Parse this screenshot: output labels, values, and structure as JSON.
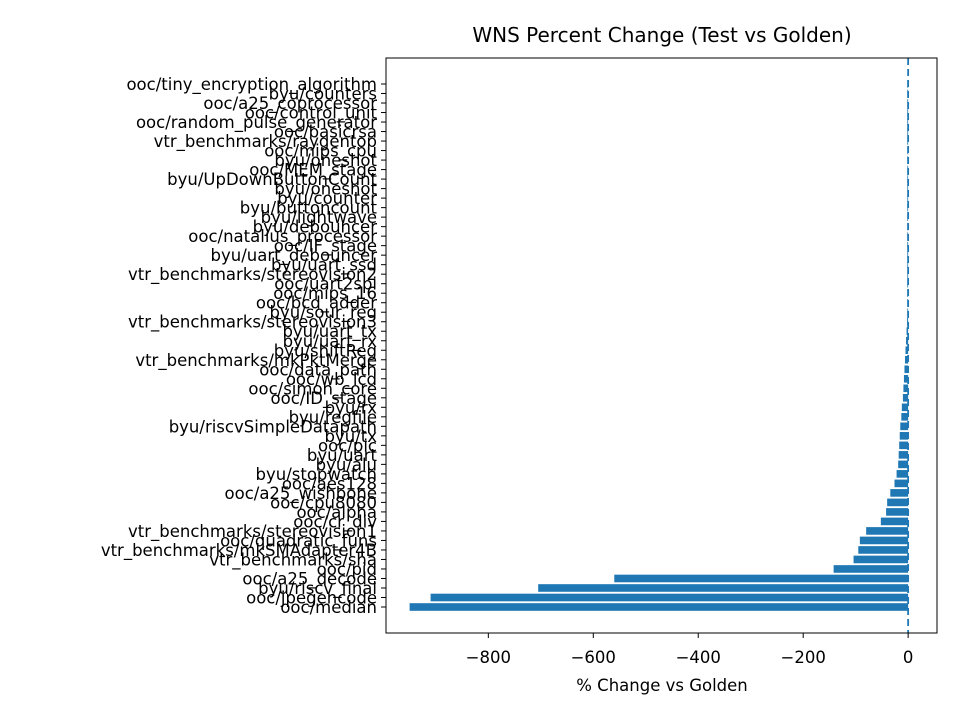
{
  "chart_data": {
    "type": "bar",
    "orientation": "horizontal",
    "title": "WNS Percent Change (Test vs Golden)",
    "xlabel": "% Change vs Golden",
    "ylabel": "",
    "xlim": [
      -995,
      55
    ],
    "xticks": [
      -800,
      -600,
      -400,
      -200,
      0
    ],
    "xtick_labels": [
      "−800",
      "−600",
      "−400",
      "−200",
      "0"
    ],
    "reference_line": {
      "x": 0,
      "style": "dashed",
      "color": "#1f77b4"
    },
    "bar_color": "#1f77b4",
    "grid": false,
    "categories": [
      "ooc/tiny_encryption_algorithm",
      "byu/counters",
      "ooc/a25_coprocessor",
      "ooc/control_unit",
      "ooc/random_pulse_generator",
      "ooc/basicrsa",
      "vtr_benchmarks/raygentop",
      "ooc/mips_cpu",
      "byu/oneshot",
      "ooc/MEM_stage",
      "byu/UpDownButtonCount",
      "byu/oneshot",
      "byu/counter",
      "byu/buttoncount",
      "byu/lightwave",
      "byu/debouncer",
      "ooc/natalius_processor",
      "ooc/IF_stage",
      "byu/uart_debouncer",
      "byu/uart_ssd",
      "vtr_benchmarks/stereovision2",
      "ooc/uart2spi",
      "ooc/mips_16",
      "ooc/bcd_adder",
      "byu/sour_reg",
      "vtr_benchmarks/stereovision3",
      "byu/uart_tx",
      "byu/uart_rx",
      "byu/shiftReg",
      "vtr_benchmarks/mkPktMerge",
      "ooc/data_path",
      "ooc/wb_lcd",
      "ooc/simon_core",
      "ooc/ID_stage",
      "byu/rx",
      "byu/regfile",
      "byu/riscvSimpleDatapath",
      "byu/tx",
      "ooc/pic",
      "byu/uart",
      "byu/alu",
      "byu/stopwatch",
      "ooc/aes128",
      "ooc/a25_wishbone",
      "ooc/cpu8080",
      "ooc/alpha",
      "ooc/cr_div",
      "vtr_benchmarks/stereovision1",
      "ooc/quadratic_funs",
      "vtr_benchmarks/mkSMAdapter4B",
      "vtr_benchmarks/sha",
      "ooc/pid",
      "ooc/a25_decode",
      "byu/riscv_final",
      "ooc/jpegencode",
      "ooc/median"
    ],
    "values": [
      0,
      0,
      0,
      0,
      0,
      0,
      0,
      0,
      0,
      0,
      0,
      0,
      0,
      0,
      0,
      0,
      0,
      0,
      0,
      0,
      0,
      0,
      0,
      0,
      0,
      -2,
      -3,
      -4,
      -5,
      -6,
      -7,
      -8,
      -9,
      -10,
      -12,
      -13,
      -15,
      -16,
      -17,
      -18,
      -19,
      -22,
      -26,
      -34,
      -40,
      -42,
      -52,
      -80,
      -92,
      -95,
      -104,
      -142,
      -560,
      -705,
      -910,
      -950
    ]
  }
}
